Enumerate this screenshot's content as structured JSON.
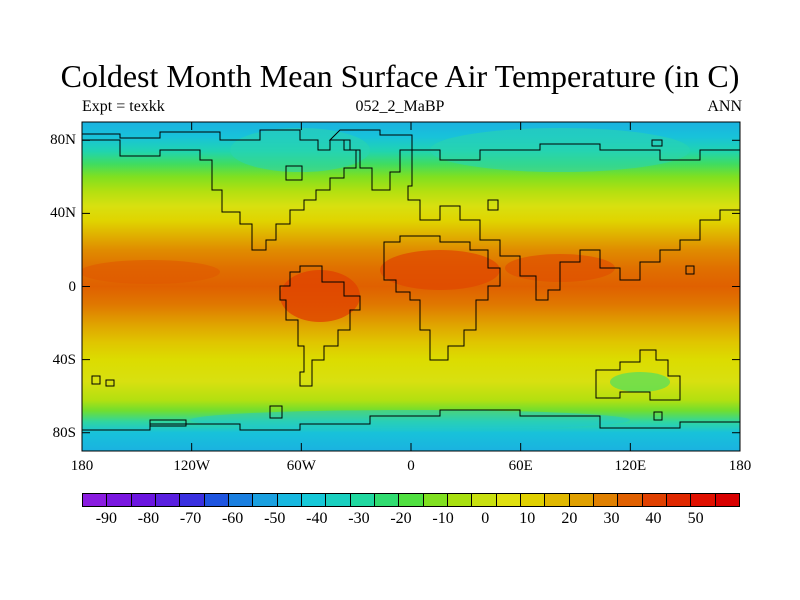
{
  "title": "Coldest Month Mean Surface Air Temperature (in C)",
  "subtitle_left": "Expt = texkk",
  "subtitle_center": "052_2_MaBP",
  "subtitle_right": "ANN",
  "y_ticks": [
    "80N",
    "40N",
    "0",
    "40S",
    "80S"
  ],
  "y_tick_values": [
    80,
    40,
    0,
    -40,
    -80
  ],
  "x_ticks": [
    "180",
    "120W",
    "60W",
    "0",
    "60E",
    "120E",
    "180"
  ],
  "x_tick_values": [
    -180,
    -120,
    -60,
    0,
    60,
    120,
    180
  ],
  "colorbar": {
    "labels": [
      "-90",
      "-80",
      "-70",
      "-60",
      "-50",
      "-40",
      "-30",
      "-20",
      "-10",
      "0",
      "10",
      "20",
      "30",
      "40",
      "50"
    ],
    "colors": [
      "#8a1ce0",
      "#7a17e0",
      "#6b15e0",
      "#5a20e0",
      "#3a30e0",
      "#1e55e0",
      "#1a7fe0",
      "#1aa0e0",
      "#18b8e0",
      "#15c8d8",
      "#1ad0c0",
      "#20d8a0",
      "#30dc70",
      "#50e040",
      "#80e020",
      "#a8e010",
      "#c8e010",
      "#e0e010",
      "#e0d000",
      "#e0b800",
      "#e0a000",
      "#e08000",
      "#e06000",
      "#e04000",
      "#e02800",
      "#e01000",
      "#d80000"
    ]
  },
  "temperature_bands": [
    {
      "lat": 90,
      "color": "#1ab2e0"
    },
    {
      "lat": 82,
      "color": "#18c2da"
    },
    {
      "lat": 74,
      "color": "#20d4b0"
    },
    {
      "lat": 67,
      "color": "#40dc60"
    },
    {
      "lat": 60,
      "color": "#80e020"
    },
    {
      "lat": 52,
      "color": "#b4e010"
    },
    {
      "lat": 44,
      "color": "#d8e010"
    },
    {
      "lat": 36,
      "color": "#e0d400"
    },
    {
      "lat": 28,
      "color": "#e0b000"
    },
    {
      "lat": 20,
      "color": "#e08c00"
    },
    {
      "lat": 10,
      "color": "#e07000"
    },
    {
      "lat": 0,
      "color": "#e06000"
    },
    {
      "lat": -10,
      "color": "#e07800"
    },
    {
      "lat": -20,
      "color": "#e0a000"
    },
    {
      "lat": -30,
      "color": "#e0c400"
    },
    {
      "lat": -40,
      "color": "#dcdc00"
    },
    {
      "lat": -52,
      "color": "#d8e010"
    },
    {
      "lat": -62,
      "color": "#b4e010"
    },
    {
      "lat": -68,
      "color": "#70de30"
    },
    {
      "lat": -74,
      "color": "#30d6a0"
    },
    {
      "lat": -80,
      "color": "#18c2da"
    },
    {
      "lat": -90,
      "color": "#1ab2e0"
    }
  ]
}
